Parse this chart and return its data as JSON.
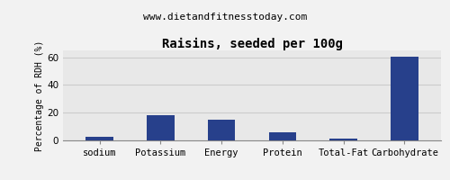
{
  "title": "Raisins, seeded per 100g",
  "subtitle": "www.dietandfitnesstoday.com",
  "categories": [
    "sodium",
    "Potassium",
    "Energy",
    "Protein",
    "Total-Fat",
    "Carbohydrate"
  ],
  "values": [
    2.5,
    18.5,
    15.0,
    6.0,
    1.0,
    60.5
  ],
  "bar_color": "#27408b",
  "ylabel": "Percentage of RDH (%)",
  "ylim": [
    0,
    65
  ],
  "yticks": [
    0,
    20,
    40,
    60
  ],
  "background_color": "#f2f2f2",
  "plot_bg_color": "#e8e8e8",
  "title_fontsize": 10,
  "subtitle_fontsize": 8,
  "ylabel_fontsize": 7,
  "tick_fontsize": 7.5
}
